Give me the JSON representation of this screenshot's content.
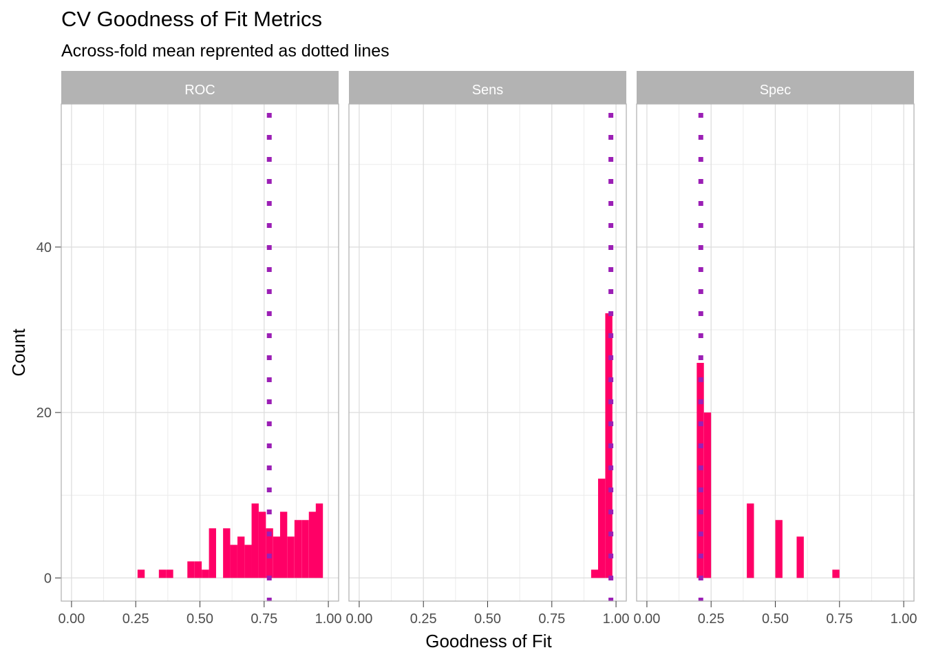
{
  "title": "CV Goodness of Fit Metrics",
  "subtitle": "Across-fold mean reprented as dotted lines",
  "chart_data": {
    "type": "bar",
    "subtype": "faceted-histogram",
    "xlabel": "Goodness of Fit",
    "ylabel": "Count",
    "xlim": [
      -0.04,
      1.04
    ],
    "ylim": [
      -2.8,
      57.3
    ],
    "x_ticks": [
      0.0,
      0.25,
      0.5,
      0.75,
      1.0
    ],
    "x_tick_labels": [
      "0.00",
      "0.25",
      "0.50",
      "0.75",
      "1.00"
    ],
    "y_ticks": [
      0,
      20,
      40
    ],
    "y_tick_labels": [
      "0",
      "20",
      "40"
    ],
    "grid": true,
    "bin_width": 0.0278,
    "bar_color": "#FF0066",
    "mean_line_color": "#9B1FB5",
    "strip_color": "#B3B3B3",
    "panels": [
      {
        "label": "ROC",
        "mean": 0.77,
        "bins": [
          {
            "x": 0.271,
            "count": 1
          },
          {
            "x": 0.354,
            "count": 1
          },
          {
            "x": 0.382,
            "count": 1
          },
          {
            "x": 0.465,
            "count": 2
          },
          {
            "x": 0.493,
            "count": 2
          },
          {
            "x": 0.521,
            "count": 1
          },
          {
            "x": 0.549,
            "count": 6
          },
          {
            "x": 0.604,
            "count": 6
          },
          {
            "x": 0.632,
            "count": 4
          },
          {
            "x": 0.66,
            "count": 5
          },
          {
            "x": 0.688,
            "count": 4
          },
          {
            "x": 0.715,
            "count": 9
          },
          {
            "x": 0.743,
            "count": 8
          },
          {
            "x": 0.771,
            "count": 6
          },
          {
            "x": 0.799,
            "count": 5
          },
          {
            "x": 0.826,
            "count": 8
          },
          {
            "x": 0.854,
            "count": 5
          },
          {
            "x": 0.882,
            "count": 7
          },
          {
            "x": 0.91,
            "count": 7
          },
          {
            "x": 0.938,
            "count": 8
          },
          {
            "x": 0.965,
            "count": 9
          }
        ]
      },
      {
        "label": "Sens",
        "mean": 0.98,
        "bins": [
          {
            "x": 0.917,
            "count": 1
          },
          {
            "x": 0.944,
            "count": 12
          },
          {
            "x": 0.972,
            "count": 32
          }
        ]
      },
      {
        "label": "Spec",
        "mean": 0.21,
        "bins": [
          {
            "x": 0.208,
            "count": 26
          },
          {
            "x": 0.236,
            "count": 20
          },
          {
            "x": 0.403,
            "count": 9
          },
          {
            "x": 0.514,
            "count": 7
          },
          {
            "x": 0.597,
            "count": 5
          },
          {
            "x": 0.736,
            "count": 1
          }
        ]
      }
    ]
  }
}
